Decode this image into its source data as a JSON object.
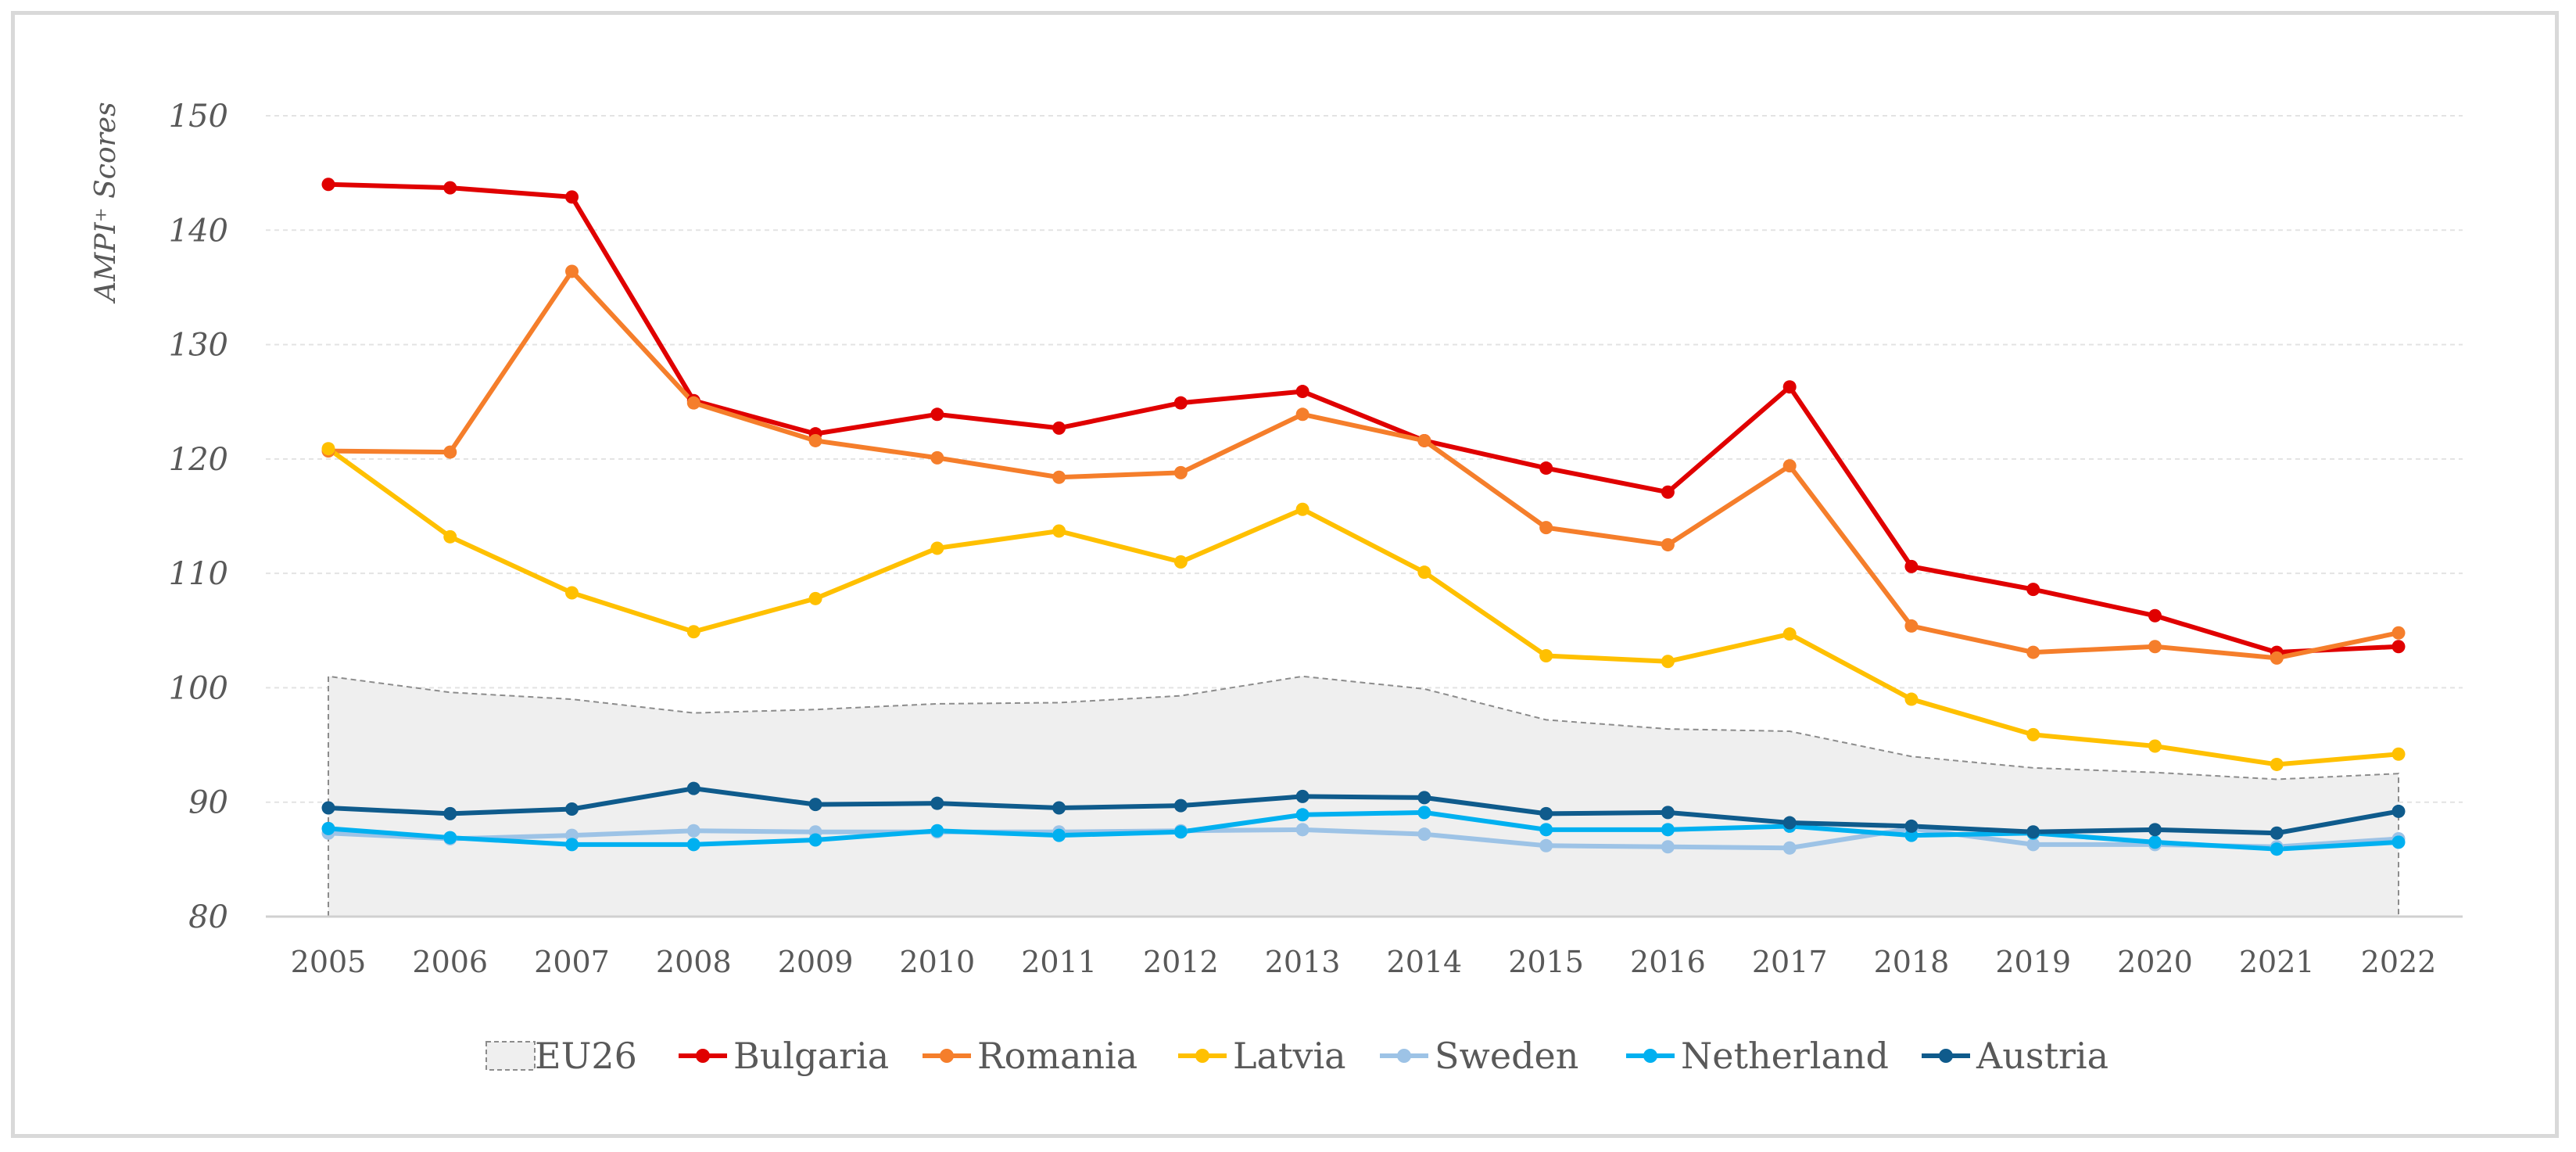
{
  "chart_data": {
    "type": "line",
    "title": "",
    "xlabel": "",
    "ylabel": "AMPI⁺ Scores",
    "ylim": [
      80,
      150
    ],
    "yticks": [
      80,
      90,
      100,
      110,
      120,
      130,
      140,
      150
    ],
    "grid": true,
    "legend_position": "bottom",
    "x": [
      "2005",
      "2006",
      "2007",
      "2008",
      "2009",
      "2010",
      "2011",
      "2012",
      "2013",
      "2014",
      "2015",
      "2016",
      "2017",
      "2018",
      "2019",
      "2020",
      "2021",
      "2022"
    ],
    "series": [
      {
        "name": "EU26",
        "kind": "area",
        "color": "#efefef",
        "edge": "#8c8c8c",
        "values": [
          101.0,
          99.6,
          99.0,
          97.8,
          98.1,
          98.6,
          98.7,
          99.3,
          101.0,
          99.9,
          97.2,
          96.4,
          96.2,
          94.0,
          93.0,
          92.6,
          92.0,
          92.5
        ]
      },
      {
        "name": "Bulgaria",
        "color": "#e00000",
        "values": [
          144.0,
          143.7,
          142.9,
          125.1,
          122.2,
          123.9,
          122.7,
          124.9,
          125.9,
          121.6,
          119.2,
          117.1,
          126.3,
          110.6,
          108.6,
          106.3,
          103.1,
          103.6
        ]
      },
      {
        "name": "Romania",
        "color": "#f57e2b",
        "values": [
          120.7,
          120.6,
          136.4,
          124.9,
          121.6,
          120.1,
          118.4,
          118.8,
          123.9,
          121.6,
          114.0,
          112.5,
          119.4,
          105.4,
          103.1,
          103.6,
          102.6,
          104.8
        ]
      },
      {
        "name": "Latvia",
        "color": "#ffc000",
        "values": [
          120.9,
          113.2,
          108.3,
          104.9,
          107.8,
          112.2,
          113.7,
          111.0,
          115.6,
          110.1,
          102.8,
          102.3,
          104.7,
          99.0,
          95.9,
          94.9,
          93.3,
          94.2
        ]
      },
      {
        "name": "Sweden",
        "color": "#9dc3e6",
        "values": [
          87.3,
          86.8,
          87.1,
          87.5,
          87.4,
          87.4,
          87.4,
          87.5,
          87.6,
          87.2,
          86.2,
          86.1,
          86.0,
          87.7,
          86.3,
          86.3,
          86.1,
          86.8
        ]
      },
      {
        "name": "Netherland",
        "color": "#00b0f0",
        "values": [
          87.7,
          86.9,
          86.3,
          86.3,
          86.7,
          87.5,
          87.1,
          87.4,
          88.9,
          89.1,
          87.6,
          87.6,
          87.9,
          87.1,
          87.3,
          86.5,
          85.9,
          86.5
        ]
      },
      {
        "name": "Austria",
        "color": "#0f5b8c",
        "values": [
          89.5,
          89.0,
          89.4,
          91.2,
          89.8,
          89.9,
          89.5,
          89.7,
          90.5,
          90.4,
          89.0,
          89.1,
          88.2,
          87.9,
          87.4,
          87.6,
          87.3,
          89.2
        ]
      }
    ]
  }
}
